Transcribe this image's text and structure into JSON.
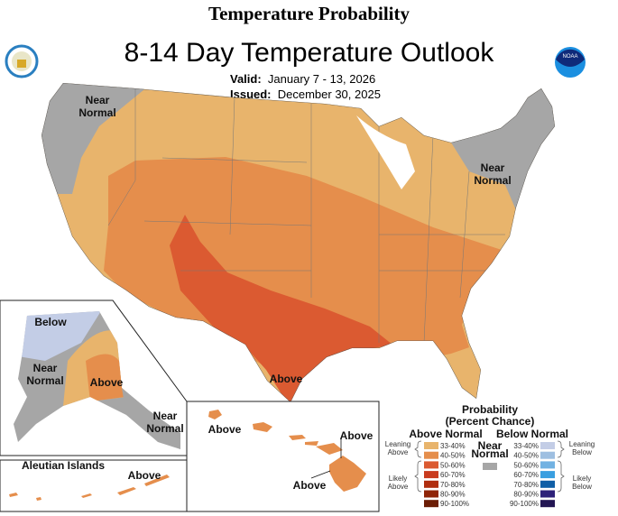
{
  "header": "Temperature Probability",
  "title": "8-14 Day Temperature Outlook",
  "valid_label": "Valid:",
  "valid": "January 7 - 13, 2026",
  "issued_label": "Issued:",
  "issued": "December 30, 2025",
  "logos": {
    "left": "Department of Commerce seal",
    "right": "NOAA",
    "right_text": "NOAA"
  },
  "map_labels": {
    "nw": "Near\nNormal",
    "ne": "Near\nNormal",
    "texas": "Above",
    "ak_below": "Below",
    "ak_near": "Near\nNormal",
    "ak_above": "Above",
    "ak_se_near": "Near\nNormal",
    "aleutian_title": "Aleutian Islands",
    "aleutian_above": "Above",
    "hi_above_1": "Above",
    "hi_above_2": "Above",
    "hi_above_3": "Above"
  },
  "colors": {
    "near": "#a6a6a6",
    "a33": "#e8b46c",
    "a40": "#e58e4c",
    "a50": "#db5a31",
    "a60": "#c93b1e",
    "a70": "#b02d0f",
    "a80": "#8f2407",
    "a90": "#6b1d05",
    "b33": "#c3cde6",
    "b40": "#9ebfe1",
    "b50": "#72b2e2",
    "b60": "#3a9fe0",
    "b70": "#0f5ea6",
    "b80": "#2d2179",
    "b90": "#231653"
  },
  "legend": {
    "title": "Probability",
    "subtitle": "(Percent Chance)",
    "above_header": "Above Normal",
    "below_header": "Below Normal",
    "near_label": "Near\nNormal",
    "leaning_above": "Leaning\nAbove",
    "likely_above": "Likely\nAbove",
    "leaning_below": "Leaning\nBelow",
    "likely_below": "Likely\nBelow",
    "ranges": [
      "33-40%",
      "40-50%",
      "50-60%",
      "60-70%",
      "70-80%",
      "80-90%",
      "90-100%"
    ]
  }
}
